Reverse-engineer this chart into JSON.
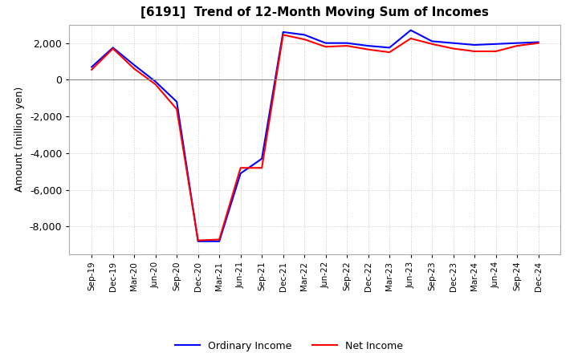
{
  "title": "[6191]  Trend of 12-Month Moving Sum of Incomes",
  "ylabel": "Amount (million yen)",
  "background_color": "#ffffff",
  "grid_color": "#c8c8c8",
  "ordinary_income_color": "#0000ff",
  "net_income_color": "#ff0000",
  "legend_labels": [
    "Ordinary Income",
    "Net Income"
  ],
  "x_labels": [
    "Sep-19",
    "Dec-19",
    "Mar-20",
    "Jun-20",
    "Sep-20",
    "Dec-20",
    "Mar-21",
    "Jun-21",
    "Sep-21",
    "Dec-21",
    "Mar-22",
    "Jun-22",
    "Sep-22",
    "Dec-22",
    "Mar-23",
    "Jun-23",
    "Sep-23",
    "Dec-23",
    "Mar-24",
    "Jun-24",
    "Sep-24",
    "Dec-24"
  ],
  "ordinary_income": [
    700,
    1750,
    800,
    -100,
    -1200,
    -8800,
    -8800,
    -5100,
    -4300,
    2600,
    2450,
    2000,
    2000,
    1850,
    1750,
    2700,
    2100,
    2000,
    1900,
    1950,
    2000,
    2050
  ],
  "net_income": [
    550,
    1700,
    600,
    -250,
    -1600,
    -8750,
    -8700,
    -4800,
    -4800,
    2450,
    2200,
    1800,
    1850,
    1650,
    1500,
    2250,
    1950,
    1700,
    1550,
    1550,
    1850,
    2000
  ],
  "ylim": [
    -9500,
    3000
  ],
  "yticks": [
    -8000,
    -6000,
    -4000,
    -2000,
    0,
    2000
  ]
}
